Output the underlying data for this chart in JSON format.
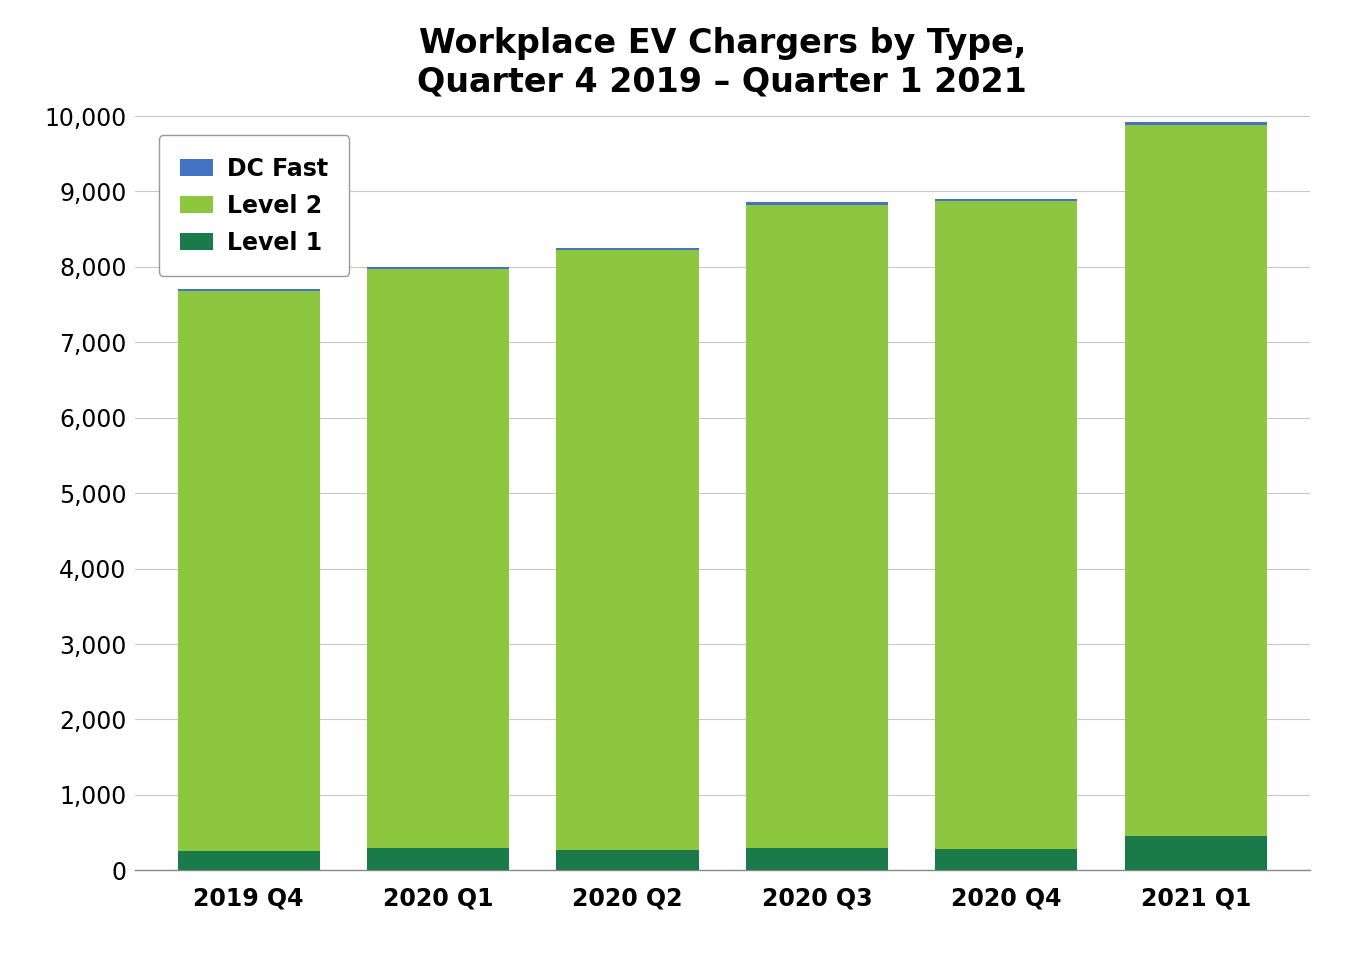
{
  "categories": [
    "2019 Q4",
    "2020 Q1",
    "2020 Q2",
    "2020 Q3",
    "2020 Q4",
    "2021 Q1"
  ],
  "level1": [
    255,
    295,
    270,
    295,
    280,
    460
  ],
  "level2": [
    7420,
    7680,
    7950,
    8530,
    8590,
    9420
  ],
  "dc_fast": [
    30,
    30,
    30,
    30,
    30,
    45
  ],
  "color_level1": "#1a7a4a",
  "color_level2": "#8dc63f",
  "color_dc_fast": "#4472c4",
  "title": "Workplace EV Chargers by Type,\nQuarter 4 2019 – Quarter 1 2021",
  "title_fontsize": 24,
  "legend_labels": [
    "DC Fast",
    "Level 2",
    "Level 1"
  ],
  "ylim": [
    0,
    10000
  ],
  "ytick_step": 1000,
  "background_color": "#ffffff",
  "grid_color": "#c8c8c8"
}
